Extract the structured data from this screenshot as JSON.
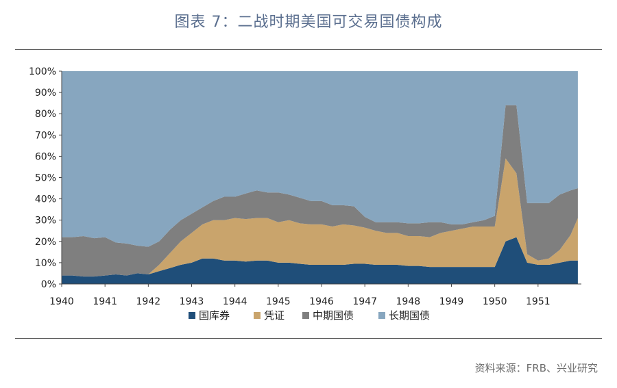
{
  "title": "图表 7：二战时期美国可交易国债构成",
  "source": "资料来源：FRB、兴业研究",
  "chart_data": {
    "type": "area",
    "stacked": true,
    "x": [
      1940.0,
      1940.25,
      1940.5,
      1940.75,
      1941.0,
      1941.25,
      1941.5,
      1941.75,
      1942.0,
      1942.25,
      1942.5,
      1942.75,
      1943.0,
      1943.25,
      1943.5,
      1943.75,
      1944.0,
      1944.25,
      1944.5,
      1944.75,
      1945.0,
      1945.25,
      1945.5,
      1945.75,
      1946.0,
      1946.25,
      1946.5,
      1946.75,
      1947.0,
      1947.25,
      1947.5,
      1947.75,
      1948.0,
      1948.25,
      1948.5,
      1948.75,
      1949.0,
      1949.25,
      1949.5,
      1949.75,
      1950.0,
      1950.25,
      1950.5,
      1950.75,
      1951.0,
      1951.25,
      1951.5,
      1951.75,
      1951.92
    ],
    "x_ticks": [
      "1940",
      "1941",
      "1942",
      "1943",
      "1944",
      "1945",
      "1946",
      "1947",
      "1948",
      "1949",
      "1950",
      "1951"
    ],
    "ylim": [
      0,
      100
    ],
    "y_ticks": [
      "0%",
      "10%",
      "20%",
      "30%",
      "40%",
      "50%",
      "60%",
      "70%",
      "80%",
      "90%",
      "100%"
    ],
    "series": [
      {
        "name": "国库券",
        "color": "#1f4e79",
        "values": [
          4,
          4,
          3.5,
          3.5,
          4,
          4.5,
          4,
          5,
          4.5,
          6,
          7.5,
          9,
          10,
          12,
          12,
          11,
          11,
          10.5,
          11,
          11,
          10,
          10,
          9.5,
          9,
          9,
          9,
          9,
          9.5,
          9.5,
          9,
          9,
          9,
          8.5,
          8.5,
          8,
          8,
          8,
          8,
          8,
          8,
          8,
          20,
          22,
          10,
          9,
          9,
          10,
          11,
          11
        ]
      },
      {
        "name": "凭证",
        "color": "#c9a46c",
        "values": [
          0,
          0,
          0,
          0,
          0,
          0,
          0,
          0,
          0,
          3,
          7,
          11,
          14,
          16,
          18,
          19,
          20,
          20,
          20,
          20,
          19,
          20,
          19,
          19,
          19,
          18,
          19,
          18,
          17,
          16,
          15,
          15,
          14,
          14,
          14,
          16,
          17,
          18,
          19,
          19,
          19,
          39,
          30,
          4,
          2,
          3,
          6,
          12,
          20
        ]
      },
      {
        "name": "中期国债",
        "color": "#7f7f7f",
        "values": [
          18,
          18,
          19,
          18,
          18,
          15,
          15,
          13,
          13,
          11,
          11,
          10,
          9,
          8,
          9,
          11,
          10,
          12,
          13,
          12,
          14,
          12,
          12,
          11,
          11,
          10,
          9,
          9,
          5,
          4,
          5,
          5,
          6,
          6,
          7,
          5,
          3,
          2,
          2,
          3,
          5,
          25,
          32,
          24,
          27,
          26,
          26,
          21,
          14
        ]
      },
      {
        "name": "长期国债",
        "color": "#87a6bf",
        "values": [
          78,
          78,
          77.5,
          78.5,
          78,
          80.5,
          81,
          82,
          82.5,
          80,
          74.5,
          70,
          67,
          64,
          61,
          59,
          59,
          57.5,
          56,
          57,
          57,
          58,
          59.5,
          61,
          61,
          63,
          63,
          63.5,
          68.5,
          71,
          71,
          71,
          71.5,
          71.5,
          71,
          71,
          72,
          72,
          71,
          70,
          68,
          16,
          16,
          62,
          62,
          62,
          58,
          56,
          55
        ]
      }
    ],
    "legend_position": "bottom",
    "grid": false
  }
}
